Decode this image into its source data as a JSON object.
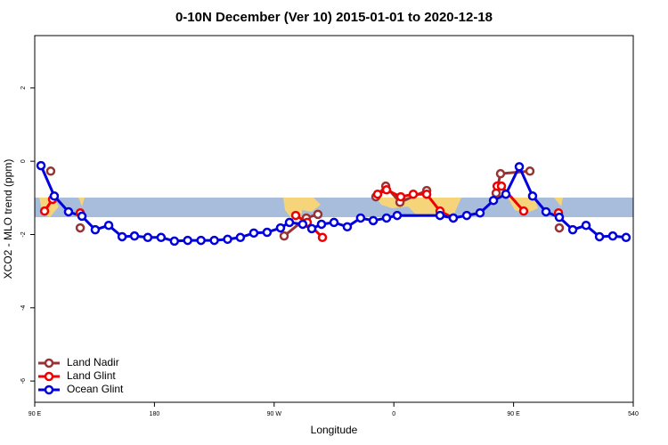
{
  "chart_data": {
    "type": "line",
    "title": "0-10N December (Ver 10)   2015-01-01 to 2020-12-18",
    "x_label": "Longitude",
    "y_label": "XCO2 - MLO trend (ppm)",
    "xlim": [
      90,
      540
    ],
    "xticks": [
      {
        "value": 90,
        "label": "90 E"
      },
      180,
      {
        "value": 270,
        "label": "90 W"
      },
      {
        "value": 360,
        "label": "0"
      },
      {
        "value": 450,
        "label": "90 E"
      },
      540
    ],
    "ylim": [
      -6.58,
      3.43
    ],
    "yticks": [
      -6,
      -4,
      -2,
      0,
      2
    ],
    "legend": "bottom-left",
    "series": [
      {
        "name": "Land Nadir",
        "color": "#993333",
        "x": [
          102,
          null,
          124.2,
          null,
          277.5,
          294.2,
          302.9,
          null,
          346.5,
          353.9,
          364.6,
          384.7,
          null,
          436.9,
          440.2,
          462.3,
          null,
          484.4
        ],
        "values": [
          -0.27,
          null,
          -1.82,
          null,
          -2.04,
          -1.55,
          -1.45,
          null,
          -0.97,
          -0.68,
          -1.12,
          -0.8,
          null,
          -0.87,
          -0.34,
          -0.27,
          null,
          -1.82
        ]
      },
      {
        "name": "Land Glint",
        "color": "#ee0000",
        "x": [
          97.4,
          103.4,
          null,
          124.2,
          null,
          286.2,
          294.9,
          306.3,
          null,
          347.8,
          354.5,
          365.2,
          374.6,
          384.7,
          394.7,
          404.7,
          null,
          437.6,
          440.9,
          457.6,
          null,
          483.8
        ],
        "values": [
          -1.36,
          -1.04,
          null,
          -1.41,
          null,
          -1.48,
          -1.67,
          -2.08,
          null,
          -0.9,
          -0.78,
          -0.97,
          -0.9,
          -0.9,
          -1.36,
          -1.55,
          null,
          -0.68,
          -0.68,
          -1.36,
          null,
          -1.41
        ]
      },
      {
        "name": "Ocean Glint",
        "color": "#0000dd",
        "x": [
          94.7,
          104.7,
          115.4,
          125.5,
          135.5,
          145.6,
          155.7,
          165,
          175,
          185,
          195,
          205,
          215,
          225,
          235,
          244.6,
          254.7,
          264.7,
          274.8,
          281.5,
          291.5,
          298.3,
          305.6,
          315,
          325,
          335,
          344.5,
          354.5,
          362.5,
          394.7,
          404.7,
          414.8,
          424.8,
          434.9,
          444.2,
          454.3,
          464.3,
          474.4,
          484.4,
          494.5,
          504.5,
          514.6,
          524.6,
          534.6
        ],
        "values": [
          -0.12,
          -0.95,
          -1.38,
          -1.5,
          -1.87,
          -1.75,
          -2.06,
          -2.04,
          -2.08,
          -2.08,
          -2.18,
          -2.16,
          -2.16,
          -2.16,
          -2.13,
          -2.08,
          -1.96,
          -1.94,
          -1.82,
          -1.67,
          -1.72,
          -1.84,
          -1.72,
          -1.67,
          -1.79,
          -1.55,
          -1.62,
          -1.55,
          -1.48,
          -1.48,
          -1.55,
          -1.48,
          -1.41,
          -1.07,
          -0.9,
          -0.15,
          -0.95,
          -1.38,
          -1.53,
          -1.87,
          -1.75,
          -2.06,
          -2.04,
          -2.08
        ]
      }
    ]
  }
}
